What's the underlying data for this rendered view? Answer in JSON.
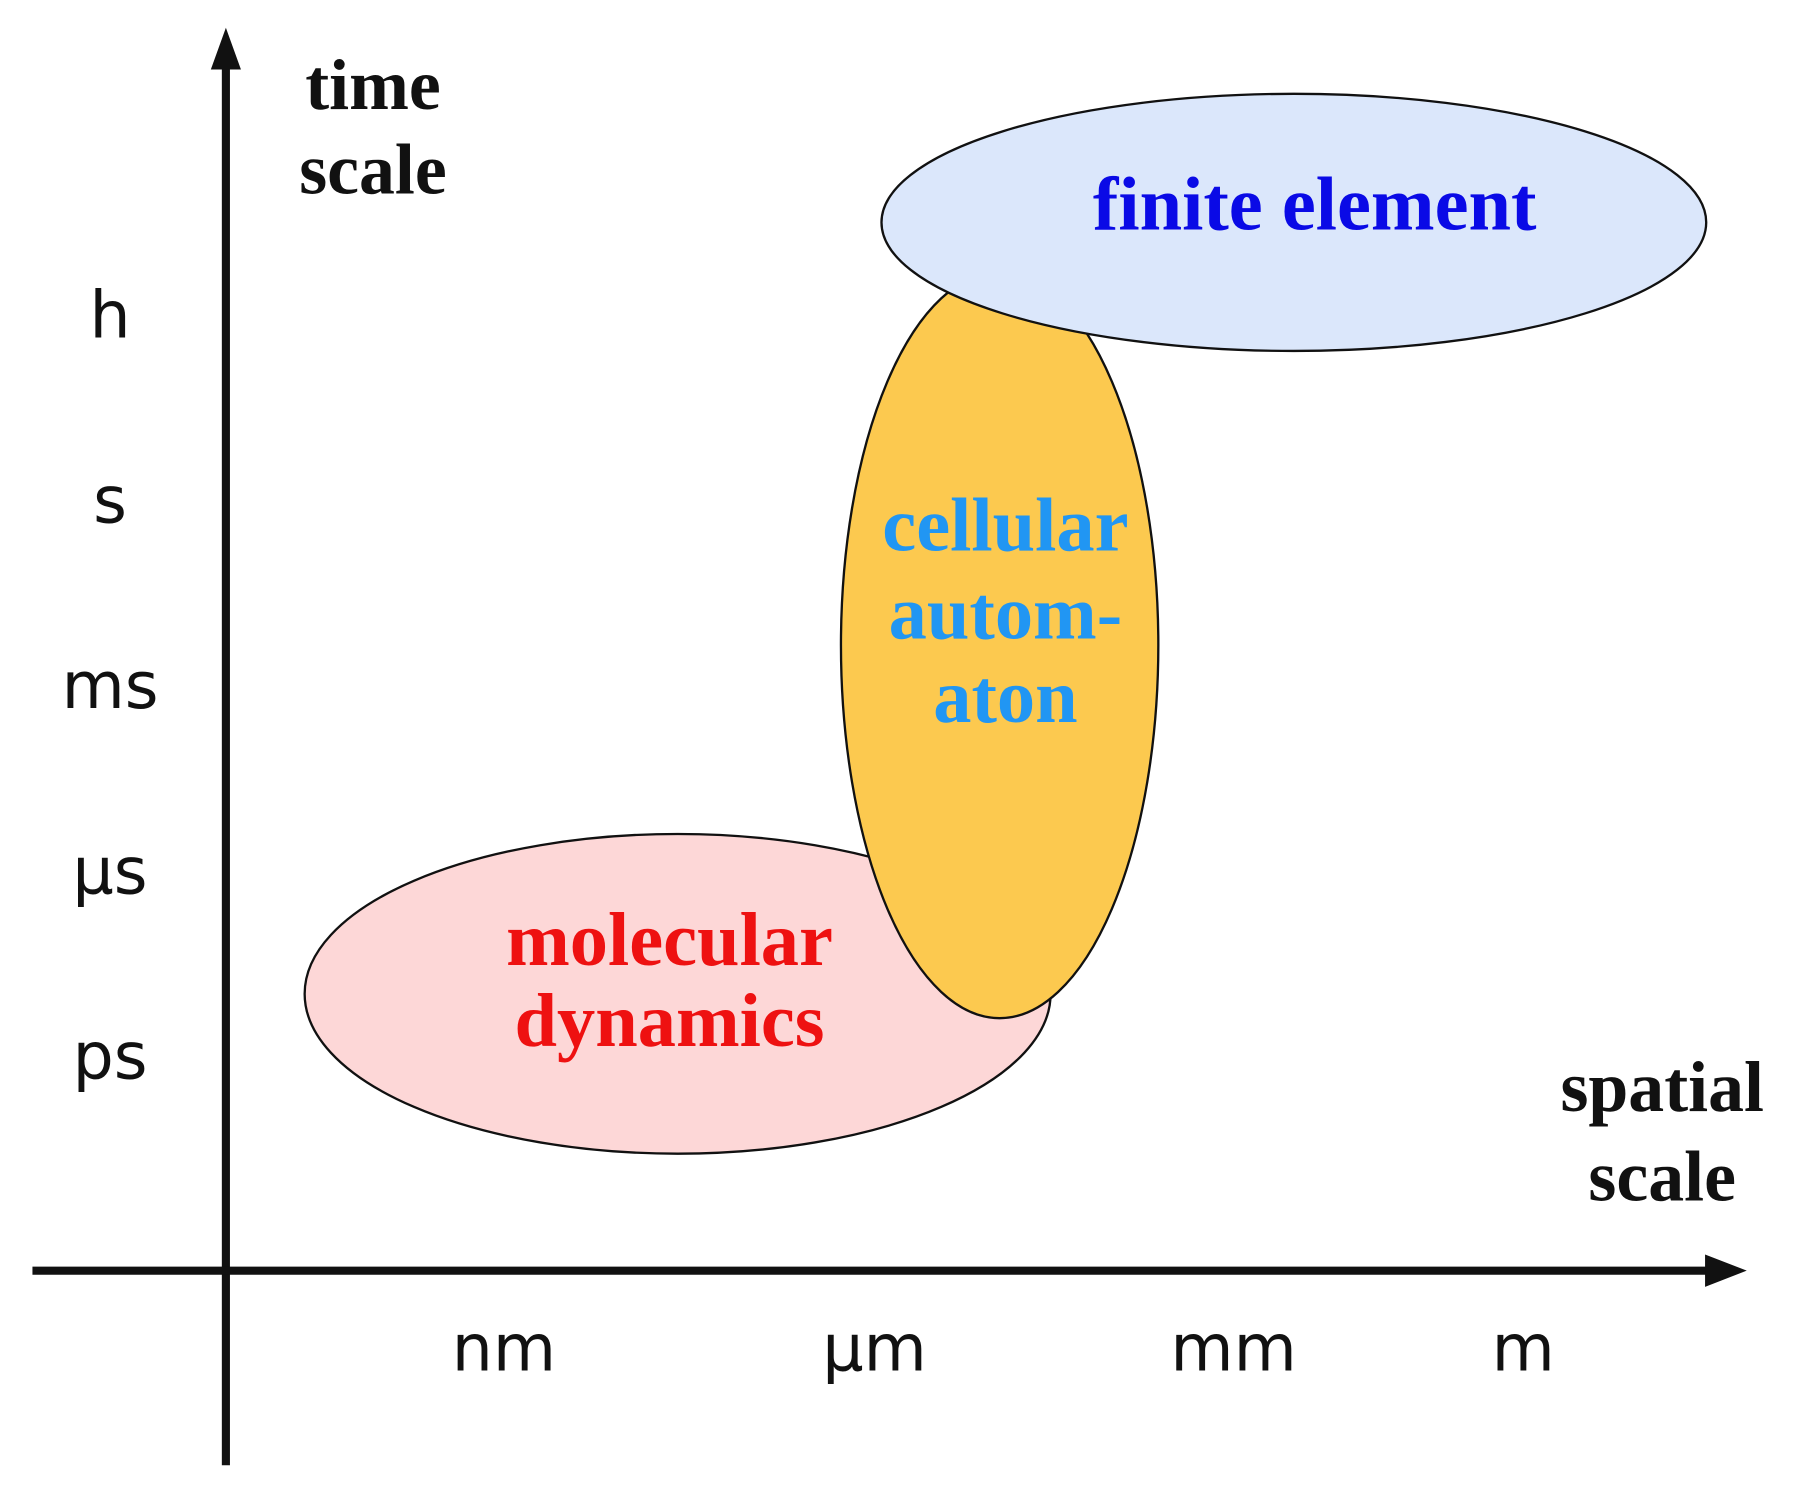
{
  "axes": {
    "y_label": [
      "time",
      "scale"
    ],
    "x_label": [
      "spatial",
      "scale"
    ],
    "y_ticks": [
      "h",
      "s",
      "ms",
      "µs",
      "ps"
    ],
    "x_ticks": [
      "nm",
      "µm",
      "mm",
      "m"
    ]
  },
  "regions": {
    "finite_element": [
      "finite element"
    ],
    "cellular_automaton": [
      "cellular",
      "autom-",
      "aton"
    ],
    "molecular_dynamics": [
      "molecular",
      "dynamics"
    ]
  }
}
